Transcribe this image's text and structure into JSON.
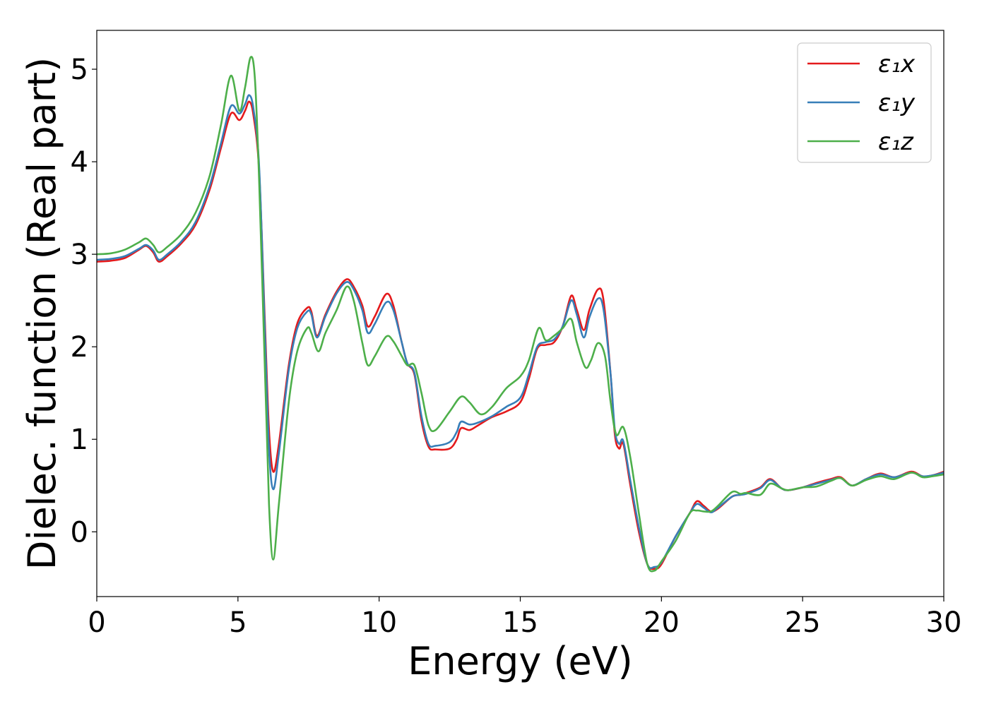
{
  "chart_data": {
    "type": "line",
    "xlabel": "Energy (eV)",
    "ylabel": "Dielec. function (Real part)",
    "xlim": [
      0,
      30
    ],
    "ylim": [
      -0.7,
      5.42
    ],
    "xticks": [
      0,
      5,
      10,
      15,
      20,
      25,
      30
    ],
    "xtick_labels": [
      "0",
      "5",
      "10",
      "15",
      "20",
      "25",
      "30"
    ],
    "yticks": [
      0,
      1,
      2,
      3,
      4,
      5
    ],
    "ytick_labels": [
      "0",
      "1",
      "2",
      "3",
      "4",
      "5"
    ],
    "grid": false,
    "legend_position": "top-right",
    "series": [
      {
        "name": "ε₁x",
        "color": "#e41a1c",
        "points": [
          [
            0,
            2.92
          ],
          [
            0.5,
            2.93
          ],
          [
            1.0,
            2.96
          ],
          [
            1.5,
            3.05
          ],
          [
            1.75,
            3.09
          ],
          [
            2.0,
            3.02
          ],
          [
            2.2,
            2.92
          ],
          [
            2.5,
            2.98
          ],
          [
            3.0,
            3.12
          ],
          [
            3.5,
            3.32
          ],
          [
            4.0,
            3.7
          ],
          [
            4.4,
            4.15
          ],
          [
            4.75,
            4.52
          ],
          [
            5.05,
            4.45
          ],
          [
            5.25,
            4.55
          ],
          [
            5.4,
            4.65
          ],
          [
            5.55,
            4.5
          ],
          [
            5.75,
            3.9
          ],
          [
            5.95,
            2.3
          ],
          [
            6.1,
            1.1
          ],
          [
            6.25,
            0.65
          ],
          [
            6.45,
            0.95
          ],
          [
            6.8,
            1.8
          ],
          [
            7.1,
            2.25
          ],
          [
            7.45,
            2.42
          ],
          [
            7.6,
            2.38
          ],
          [
            7.8,
            2.12
          ],
          [
            8.1,
            2.35
          ],
          [
            8.5,
            2.6
          ],
          [
            8.85,
            2.73
          ],
          [
            9.1,
            2.65
          ],
          [
            9.4,
            2.45
          ],
          [
            9.6,
            2.22
          ],
          [
            9.85,
            2.33
          ],
          [
            10.25,
            2.57
          ],
          [
            10.5,
            2.45
          ],
          [
            10.8,
            2.05
          ],
          [
            11.0,
            1.82
          ],
          [
            11.25,
            1.7
          ],
          [
            11.5,
            1.2
          ],
          [
            11.75,
            0.92
          ],
          [
            12.0,
            0.89
          ],
          [
            12.5,
            0.9
          ],
          [
            12.75,
            1.0
          ],
          [
            12.9,
            1.12
          ],
          [
            13.2,
            1.1
          ],
          [
            13.5,
            1.15
          ],
          [
            14.0,
            1.24
          ],
          [
            14.5,
            1.3
          ],
          [
            15.0,
            1.4
          ],
          [
            15.3,
            1.65
          ],
          [
            15.6,
            1.98
          ],
          [
            15.9,
            2.02
          ],
          [
            16.2,
            2.05
          ],
          [
            16.5,
            2.22
          ],
          [
            16.8,
            2.55
          ],
          [
            17.0,
            2.4
          ],
          [
            17.25,
            2.18
          ],
          [
            17.45,
            2.4
          ],
          [
            17.75,
            2.62
          ],
          [
            17.95,
            2.5
          ],
          [
            18.2,
            1.7
          ],
          [
            18.35,
            1.05
          ],
          [
            18.5,
            0.9
          ],
          [
            18.65,
            0.95
          ],
          [
            18.9,
            0.5
          ],
          [
            19.2,
            0.0
          ],
          [
            19.5,
            -0.35
          ],
          [
            19.75,
            -0.4
          ],
          [
            20.0,
            -0.35
          ],
          [
            20.5,
            -0.05
          ],
          [
            21.0,
            0.2
          ],
          [
            21.25,
            0.33
          ],
          [
            21.5,
            0.28
          ],
          [
            21.75,
            0.22
          ],
          [
            22.0,
            0.25
          ],
          [
            22.5,
            0.38
          ],
          [
            22.8,
            0.4
          ],
          [
            23.0,
            0.42
          ],
          [
            23.5,
            0.48
          ],
          [
            23.85,
            0.57
          ],
          [
            24.25,
            0.47
          ],
          [
            24.5,
            0.45
          ],
          [
            25.0,
            0.48
          ],
          [
            25.5,
            0.53
          ],
          [
            26.0,
            0.57
          ],
          [
            26.35,
            0.59
          ],
          [
            26.75,
            0.5
          ],
          [
            27.25,
            0.57
          ],
          [
            27.75,
            0.63
          ],
          [
            28.25,
            0.59
          ],
          [
            28.85,
            0.65
          ],
          [
            29.25,
            0.6
          ],
          [
            29.6,
            0.61
          ],
          [
            30.0,
            0.65
          ]
        ]
      },
      {
        "name": "ε₁y",
        "color": "#377eb8",
        "points": [
          [
            0,
            2.94
          ],
          [
            0.5,
            2.95
          ],
          [
            1.0,
            2.98
          ],
          [
            1.5,
            3.06
          ],
          [
            1.75,
            3.1
          ],
          [
            2.0,
            3.04
          ],
          [
            2.2,
            2.94
          ],
          [
            2.5,
            3.0
          ],
          [
            3.0,
            3.14
          ],
          [
            3.5,
            3.35
          ],
          [
            4.0,
            3.74
          ],
          [
            4.4,
            4.2
          ],
          [
            4.75,
            4.6
          ],
          [
            5.05,
            4.52
          ],
          [
            5.25,
            4.62
          ],
          [
            5.4,
            4.72
          ],
          [
            5.55,
            4.57
          ],
          [
            5.75,
            3.95
          ],
          [
            5.95,
            2.2
          ],
          [
            6.1,
            0.9
          ],
          [
            6.25,
            0.46
          ],
          [
            6.45,
            0.85
          ],
          [
            6.8,
            1.75
          ],
          [
            7.1,
            2.2
          ],
          [
            7.45,
            2.38
          ],
          [
            7.6,
            2.35
          ],
          [
            7.8,
            2.1
          ],
          [
            8.1,
            2.33
          ],
          [
            8.5,
            2.58
          ],
          [
            8.85,
            2.7
          ],
          [
            9.1,
            2.62
          ],
          [
            9.4,
            2.4
          ],
          [
            9.6,
            2.15
          ],
          [
            9.85,
            2.25
          ],
          [
            10.25,
            2.48
          ],
          [
            10.5,
            2.4
          ],
          [
            10.8,
            2.05
          ],
          [
            11.0,
            1.82
          ],
          [
            11.25,
            1.72
          ],
          [
            11.5,
            1.25
          ],
          [
            11.75,
            0.95
          ],
          [
            12.0,
            0.93
          ],
          [
            12.5,
            0.97
          ],
          [
            12.75,
            1.08
          ],
          [
            12.9,
            1.19
          ],
          [
            13.2,
            1.16
          ],
          [
            13.5,
            1.18
          ],
          [
            14.0,
            1.25
          ],
          [
            14.5,
            1.35
          ],
          [
            15.0,
            1.45
          ],
          [
            15.3,
            1.7
          ],
          [
            15.6,
            2.0
          ],
          [
            15.9,
            2.05
          ],
          [
            16.2,
            2.08
          ],
          [
            16.5,
            2.22
          ],
          [
            16.8,
            2.5
          ],
          [
            17.0,
            2.35
          ],
          [
            17.25,
            2.1
          ],
          [
            17.45,
            2.32
          ],
          [
            17.75,
            2.52
          ],
          [
            17.95,
            2.4
          ],
          [
            18.2,
            1.7
          ],
          [
            18.35,
            1.1
          ],
          [
            18.5,
            0.95
          ],
          [
            18.65,
            0.98
          ],
          [
            18.9,
            0.55
          ],
          [
            19.2,
            0.05
          ],
          [
            19.5,
            -0.35
          ],
          [
            19.75,
            -0.38
          ],
          [
            20.0,
            -0.33
          ],
          [
            20.5,
            -0.05
          ],
          [
            21.0,
            0.2
          ],
          [
            21.25,
            0.3
          ],
          [
            21.5,
            0.26
          ],
          [
            21.75,
            0.21
          ],
          [
            22.0,
            0.26
          ],
          [
            22.5,
            0.38
          ],
          [
            22.8,
            0.4
          ],
          [
            23.0,
            0.41
          ],
          [
            23.5,
            0.47
          ],
          [
            23.85,
            0.56
          ],
          [
            24.25,
            0.47
          ],
          [
            24.5,
            0.45
          ],
          [
            25.0,
            0.48
          ],
          [
            25.5,
            0.52
          ],
          [
            26.0,
            0.56
          ],
          [
            26.35,
            0.58
          ],
          [
            26.75,
            0.5
          ],
          [
            27.25,
            0.57
          ],
          [
            27.75,
            0.62
          ],
          [
            28.25,
            0.59
          ],
          [
            28.85,
            0.64
          ],
          [
            29.25,
            0.6
          ],
          [
            29.6,
            0.61
          ],
          [
            30.0,
            0.64
          ]
        ]
      },
      {
        "name": "ε₁z",
        "color": "#4daf4a",
        "points": [
          [
            0,
            3.0
          ],
          [
            0.5,
            3.01
          ],
          [
            1.0,
            3.05
          ],
          [
            1.5,
            3.13
          ],
          [
            1.75,
            3.17
          ],
          [
            2.0,
            3.1
          ],
          [
            2.2,
            3.02
          ],
          [
            2.5,
            3.08
          ],
          [
            3.0,
            3.22
          ],
          [
            3.5,
            3.45
          ],
          [
            4.0,
            3.85
          ],
          [
            4.4,
            4.4
          ],
          [
            4.75,
            4.93
          ],
          [
            5.05,
            4.55
          ],
          [
            5.25,
            4.8
          ],
          [
            5.45,
            5.13
          ],
          [
            5.6,
            4.9
          ],
          [
            5.75,
            3.8
          ],
          [
            5.95,
            1.8
          ],
          [
            6.1,
            0.3
          ],
          [
            6.25,
            -0.3
          ],
          [
            6.45,
            0.3
          ],
          [
            6.8,
            1.4
          ],
          [
            7.1,
            1.95
          ],
          [
            7.45,
            2.2
          ],
          [
            7.6,
            2.15
          ],
          [
            7.85,
            1.95
          ],
          [
            8.1,
            2.15
          ],
          [
            8.5,
            2.4
          ],
          [
            8.85,
            2.65
          ],
          [
            9.1,
            2.5
          ],
          [
            9.4,
            2.05
          ],
          [
            9.6,
            1.8
          ],
          [
            9.85,
            1.9
          ],
          [
            10.25,
            2.11
          ],
          [
            10.5,
            2.06
          ],
          [
            10.8,
            1.9
          ],
          [
            11.0,
            1.8
          ],
          [
            11.25,
            1.8
          ],
          [
            11.5,
            1.5
          ],
          [
            11.75,
            1.15
          ],
          [
            12.0,
            1.1
          ],
          [
            12.5,
            1.3
          ],
          [
            12.9,
            1.46
          ],
          [
            13.2,
            1.4
          ],
          [
            13.6,
            1.27
          ],
          [
            14.0,
            1.35
          ],
          [
            14.5,
            1.55
          ],
          [
            15.0,
            1.68
          ],
          [
            15.3,
            1.85
          ],
          [
            15.65,
            2.2
          ],
          [
            15.9,
            2.07
          ],
          [
            16.2,
            2.12
          ],
          [
            16.5,
            2.2
          ],
          [
            16.8,
            2.3
          ],
          [
            17.0,
            2.05
          ],
          [
            17.3,
            1.78
          ],
          [
            17.5,
            1.85
          ],
          [
            17.75,
            2.04
          ],
          [
            18.0,
            1.9
          ],
          [
            18.2,
            1.4
          ],
          [
            18.4,
            1.05
          ],
          [
            18.65,
            1.13
          ],
          [
            18.9,
            0.8
          ],
          [
            19.2,
            0.2
          ],
          [
            19.5,
            -0.35
          ],
          [
            19.75,
            -0.42
          ],
          [
            20.0,
            -0.32
          ],
          [
            20.5,
            -0.1
          ],
          [
            21.0,
            0.2
          ],
          [
            21.25,
            0.23
          ],
          [
            21.5,
            0.22
          ],
          [
            21.75,
            0.22
          ],
          [
            22.0,
            0.28
          ],
          [
            22.5,
            0.43
          ],
          [
            22.8,
            0.41
          ],
          [
            23.0,
            0.42
          ],
          [
            23.5,
            0.4
          ],
          [
            23.85,
            0.52
          ],
          [
            24.25,
            0.47
          ],
          [
            24.5,
            0.45
          ],
          [
            25.0,
            0.48
          ],
          [
            25.5,
            0.49
          ],
          [
            26.0,
            0.55
          ],
          [
            26.35,
            0.58
          ],
          [
            26.75,
            0.5
          ],
          [
            27.25,
            0.56
          ],
          [
            27.75,
            0.6
          ],
          [
            28.25,
            0.57
          ],
          [
            28.85,
            0.64
          ],
          [
            29.25,
            0.59
          ],
          [
            29.6,
            0.6
          ],
          [
            30.0,
            0.62
          ]
        ]
      }
    ]
  }
}
